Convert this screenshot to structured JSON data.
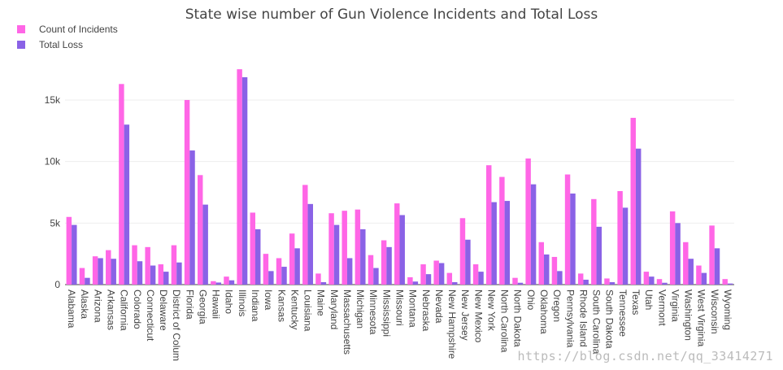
{
  "chart_data": {
    "type": "bar",
    "title": "State wise number of Gun Violence Incidents and Total Loss",
    "categories": [
      "Alabama",
      "Alaska",
      "Arizona",
      "Arkansas",
      "California",
      "Colorado",
      "Connecticut",
      "Delaware",
      "District of Colum",
      "Florida",
      "Georgia",
      "Hawaii",
      "Idaho",
      "Illinois",
      "Indiana",
      "Iowa",
      "Kansas",
      "Kentucky",
      "Louisiana",
      "Maine",
      "Maryland",
      "Massachusetts",
      "Michigan",
      "Minnesota",
      "Mississippi",
      "Missouri",
      "Montana",
      "Nebraska",
      "Nevada",
      "New Hampshire",
      "New Jersey",
      "New Mexico",
      "New York",
      "North Carolina",
      "North Dakota",
      "Ohio",
      "Oklahoma",
      "Oregon",
      "Pennsylvania",
      "Rhode Island",
      "South Carolina",
      "South Dakota",
      "Tennessee",
      "Texas",
      "Utah",
      "Vermont",
      "Virginia",
      "Washington",
      "West Virginia",
      "Wisconsin",
      "Wyoming"
    ],
    "series": [
      {
        "name": "Count of Incidents",
        "color": "#ff66e6",
        "values": [
          5500,
          1350,
          2300,
          2800,
          16300,
          3200,
          3050,
          1650,
          3200,
          15000,
          8900,
          280,
          650,
          17500,
          5850,
          2500,
          2150,
          4150,
          8100,
          900,
          5800,
          6000,
          6100,
          2400,
          3600,
          6600,
          600,
          1650,
          1950,
          950,
          5400,
          1650,
          9700,
          8750,
          550,
          10250,
          3450,
          2250,
          8950,
          900,
          6950,
          500,
          7600,
          13550,
          1050,
          450,
          5950,
          3450,
          1550,
          4800,
          450
        ]
      },
      {
        "name": "Total Loss",
        "color": "#8a62e6",
        "values": [
          4850,
          550,
          2150,
          2100,
          13000,
          1900,
          1550,
          1050,
          1800,
          10900,
          6500,
          170,
          350,
          16850,
          4500,
          1100,
          1450,
          2950,
          6550,
          200,
          4850,
          2150,
          4500,
          1350,
          3050,
          5650,
          250,
          850,
          1750,
          200,
          3650,
          1050,
          6700,
          6800,
          150,
          8150,
          2450,
          1100,
          7400,
          400,
          4700,
          200,
          6250,
          11050,
          650,
          150,
          5000,
          2100,
          950,
          2950,
          90
        ]
      }
    ],
    "ylim": [
      0,
      18500
    ],
    "yticks": [
      0,
      5000,
      10000,
      15000
    ],
    "ytick_labels": [
      "0",
      "5k",
      "10k",
      "15k"
    ],
    "legend_position": "top-left",
    "grid": true
  },
  "watermark": "https://blog.csdn.net/qq_33414271"
}
